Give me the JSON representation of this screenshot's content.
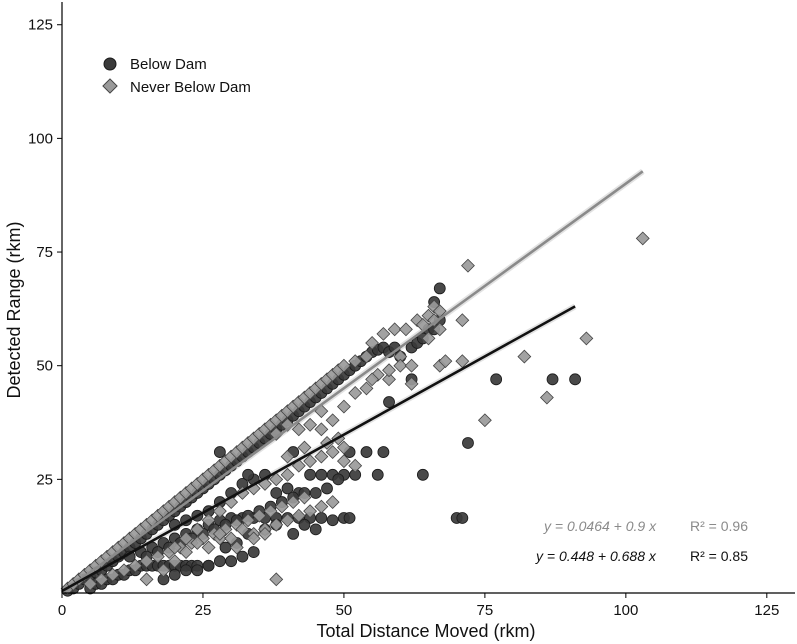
{
  "chart_data": {
    "type": "scatter",
    "xlabel": "Total Distance Moved (rkm)",
    "ylabel": "Detected Range (rkm)",
    "xlim": [
      0,
      130
    ],
    "ylim": [
      0,
      130
    ],
    "xticks": [
      0,
      25,
      50,
      75,
      100,
      125
    ],
    "yticks": [
      25,
      50,
      75,
      100,
      125
    ],
    "legend_position": "top-left",
    "grid": false,
    "series": [
      {
        "name": "Below Dam",
        "marker": "circle",
        "color": "#3a3a3a",
        "points": [
          [
            1,
            0.5
          ],
          [
            2,
            1
          ],
          [
            3,
            2
          ],
          [
            4,
            3
          ],
          [
            5,
            3.5
          ],
          [
            6,
            4.5
          ],
          [
            7,
            5
          ],
          [
            8,
            6
          ],
          [
            9,
            7
          ],
          [
            10,
            8
          ],
          [
            11,
            9
          ],
          [
            12,
            10
          ],
          [
            13,
            11
          ],
          [
            14,
            12
          ],
          [
            15,
            13
          ],
          [
            16,
            14
          ],
          [
            17,
            15
          ],
          [
            18,
            16
          ],
          [
            19,
            17
          ],
          [
            20,
            18
          ],
          [
            21,
            19
          ],
          [
            22,
            20
          ],
          [
            23,
            21
          ],
          [
            24,
            22
          ],
          [
            25,
            23
          ],
          [
            26,
            24
          ],
          [
            27,
            25
          ],
          [
            28,
            26
          ],
          [
            29,
            27
          ],
          [
            30,
            28
          ],
          [
            31,
            29
          ],
          [
            32,
            30
          ],
          [
            33,
            31
          ],
          [
            34,
            32
          ],
          [
            35,
            33
          ],
          [
            36,
            34
          ],
          [
            37,
            35
          ],
          [
            38,
            36
          ],
          [
            39,
            37
          ],
          [
            40,
            38
          ],
          [
            41,
            39
          ],
          [
            42,
            40
          ],
          [
            43,
            41
          ],
          [
            44,
            42
          ],
          [
            45,
            43
          ],
          [
            46,
            44
          ],
          [
            47,
            45
          ],
          [
            48,
            46
          ],
          [
            49,
            47
          ],
          [
            50,
            48
          ],
          [
            51,
            49
          ],
          [
            52,
            50
          ],
          [
            53,
            51
          ],
          [
            54,
            52
          ],
          [
            55,
            53
          ],
          [
            56,
            53.5
          ],
          [
            57,
            54
          ],
          [
            58,
            53
          ],
          [
            59,
            54
          ],
          [
            60,
            52
          ],
          [
            62,
            54
          ],
          [
            63,
            55
          ],
          [
            64,
            56
          ],
          [
            65,
            58
          ],
          [
            66,
            58
          ],
          [
            67,
            67
          ],
          [
            66,
            64
          ],
          [
            67,
            60
          ],
          [
            62,
            47
          ],
          [
            58,
            42
          ],
          [
            57,
            31
          ],
          [
            64,
            26
          ],
          [
            72,
            33
          ],
          [
            77,
            47
          ],
          [
            87,
            47
          ],
          [
            91,
            47
          ],
          [
            70,
            16.5
          ],
          [
            71,
            16.5
          ],
          [
            5,
            1
          ],
          [
            6,
            2
          ],
          [
            7,
            2
          ],
          [
            8,
            3
          ],
          [
            9,
            3
          ],
          [
            10,
            4
          ],
          [
            11,
            4
          ],
          [
            12,
            5
          ],
          [
            13,
            5
          ],
          [
            14,
            6
          ],
          [
            15,
            6
          ],
          [
            16,
            6
          ],
          [
            17,
            6
          ],
          [
            18,
            6
          ],
          [
            19,
            6
          ],
          [
            20,
            6
          ],
          [
            21,
            6
          ],
          [
            22,
            6
          ],
          [
            23,
            6
          ],
          [
            24,
            6
          ],
          [
            26,
            6
          ],
          [
            28,
            7
          ],
          [
            30,
            7
          ],
          [
            32,
            8
          ],
          [
            34,
            9
          ],
          [
            12,
            8
          ],
          [
            14,
            9
          ],
          [
            16,
            10
          ],
          [
            18,
            11
          ],
          [
            20,
            12
          ],
          [
            22,
            13
          ],
          [
            24,
            14
          ],
          [
            26,
            15
          ],
          [
            28,
            16
          ],
          [
            30,
            16.5
          ],
          [
            32,
            16.5
          ],
          [
            34,
            16.5
          ],
          [
            36,
            16.5
          ],
          [
            38,
            16.5
          ],
          [
            40,
            16.5
          ],
          [
            42,
            16.5
          ],
          [
            44,
            16.5
          ],
          [
            46,
            16.5
          ],
          [
            50,
            16.5
          ],
          [
            51,
            16.5
          ],
          [
            20,
            15
          ],
          [
            22,
            16
          ],
          [
            24,
            17
          ],
          [
            26,
            18
          ],
          [
            28,
            20
          ],
          [
            30,
            22
          ],
          [
            32,
            24
          ],
          [
            34,
            25
          ],
          [
            36,
            26
          ],
          [
            38,
            22
          ],
          [
            40,
            23
          ],
          [
            42,
            22
          ],
          [
            44,
            26
          ],
          [
            46,
            26
          ],
          [
            48,
            26
          ],
          [
            50,
            26
          ],
          [
            52,
            26
          ],
          [
            54,
            31
          ],
          [
            56,
            26
          ],
          [
            15,
            8
          ],
          [
            17,
            9
          ],
          [
            19,
            10
          ],
          [
            21,
            11
          ],
          [
            23,
            12
          ],
          [
            25,
            13
          ],
          [
            27,
            14
          ],
          [
            29,
            15
          ],
          [
            31,
            16
          ],
          [
            33,
            17
          ],
          [
            35,
            18
          ],
          [
            37,
            19
          ],
          [
            39,
            20
          ],
          [
            41,
            21
          ],
          [
            43,
            22
          ],
          [
            45,
            22
          ],
          [
            47,
            23
          ],
          [
            49,
            25
          ],
          [
            18,
            3
          ],
          [
            20,
            4
          ],
          [
            22,
            5
          ],
          [
            24,
            5
          ],
          [
            26,
            6
          ],
          [
            29,
            10
          ],
          [
            31,
            11
          ],
          [
            33,
            13
          ],
          [
            36,
            14
          ],
          [
            38,
            15
          ],
          [
            41,
            13
          ],
          [
            43,
            15
          ],
          [
            45,
            14
          ],
          [
            48,
            16
          ],
          [
            28,
            31
          ],
          [
            33,
            26
          ],
          [
            41,
            31
          ],
          [
            51,
            31
          ]
        ]
      },
      {
        "name": "Never Below Dam",
        "marker": "diamond",
        "color": "#9a9a9a",
        "points": [
          [
            1,
            1
          ],
          [
            2,
            2
          ],
          [
            3,
            3
          ],
          [
            4,
            4
          ],
          [
            5,
            5
          ],
          [
            6,
            6
          ],
          [
            7,
            7
          ],
          [
            8,
            8
          ],
          [
            9,
            9
          ],
          [
            10,
            10
          ],
          [
            11,
            11
          ],
          [
            12,
            12
          ],
          [
            13,
            13
          ],
          [
            14,
            14
          ],
          [
            15,
            15
          ],
          [
            16,
            16
          ],
          [
            17,
            17
          ],
          [
            18,
            18
          ],
          [
            19,
            19
          ],
          [
            20,
            20
          ],
          [
            21,
            21
          ],
          [
            22,
            22
          ],
          [
            23,
            23
          ],
          [
            24,
            24
          ],
          [
            25,
            25
          ],
          [
            26,
            26
          ],
          [
            27,
            27
          ],
          [
            28,
            28
          ],
          [
            29,
            29
          ],
          [
            30,
            30
          ],
          [
            31,
            31
          ],
          [
            32,
            32
          ],
          [
            33,
            33
          ],
          [
            34,
            34
          ],
          [
            35,
            35
          ],
          [
            36,
            36
          ],
          [
            37,
            37
          ],
          [
            38,
            38
          ],
          [
            39,
            39
          ],
          [
            40,
            40
          ],
          [
            41,
            41
          ],
          [
            42,
            42
          ],
          [
            43,
            43
          ],
          [
            44,
            44
          ],
          [
            45,
            45
          ],
          [
            46,
            46
          ],
          [
            47,
            47
          ],
          [
            48,
            48
          ],
          [
            49,
            49
          ],
          [
            50,
            50
          ],
          [
            52,
            51
          ],
          [
            54,
            52
          ],
          [
            55,
            55
          ],
          [
            57,
            57
          ],
          [
            59,
            58
          ],
          [
            61,
            58
          ],
          [
            63,
            60
          ],
          [
            65,
            61
          ],
          [
            66,
            63
          ],
          [
            67,
            62
          ],
          [
            72,
            72
          ],
          [
            71,
            60
          ],
          [
            66,
            60
          ],
          [
            67,
            58
          ],
          [
            71,
            51
          ],
          [
            67,
            50
          ],
          [
            60,
            52
          ],
          [
            62,
            46
          ],
          [
            56,
            48
          ],
          [
            58,
            47
          ],
          [
            54,
            45
          ],
          [
            52,
            44
          ],
          [
            50,
            41
          ],
          [
            48,
            38
          ],
          [
            46,
            36
          ],
          [
            44,
            37
          ],
          [
            42,
            36
          ],
          [
            40,
            37
          ],
          [
            38,
            35
          ],
          [
            75,
            38
          ],
          [
            82,
            52
          ],
          [
            86,
            43
          ],
          [
            93,
            56
          ],
          [
            103,
            78
          ],
          [
            38,
            3
          ],
          [
            5,
            2
          ],
          [
            7,
            3
          ],
          [
            9,
            4
          ],
          [
            11,
            5
          ],
          [
            13,
            6
          ],
          [
            15,
            7
          ],
          [
            17,
            8
          ],
          [
            19,
            9
          ],
          [
            21,
            10
          ],
          [
            23,
            11
          ],
          [
            25,
            12
          ],
          [
            27,
            13
          ],
          [
            29,
            14
          ],
          [
            31,
            15
          ],
          [
            33,
            16
          ],
          [
            35,
            17
          ],
          [
            37,
            18
          ],
          [
            39,
            19
          ],
          [
            41,
            20
          ],
          [
            43,
            21
          ],
          [
            15,
            3
          ],
          [
            18,
            5
          ],
          [
            20,
            7
          ],
          [
            22,
            9
          ],
          [
            24,
            11
          ],
          [
            26,
            10
          ],
          [
            28,
            12
          ],
          [
            30,
            12
          ],
          [
            32,
            14
          ],
          [
            34,
            13
          ],
          [
            36,
            14
          ],
          [
            38,
            15
          ],
          [
            40,
            16
          ],
          [
            42,
            17
          ],
          [
            44,
            18
          ],
          [
            46,
            19
          ],
          [
            48,
            20
          ],
          [
            20,
            10
          ],
          [
            22,
            12
          ],
          [
            24,
            14
          ],
          [
            26,
            16
          ],
          [
            28,
            18
          ],
          [
            30,
            20
          ],
          [
            32,
            22
          ],
          [
            34,
            23
          ],
          [
            36,
            24
          ],
          [
            38,
            25
          ],
          [
            40,
            26
          ],
          [
            42,
            28
          ],
          [
            44,
            29
          ],
          [
            46,
            30
          ],
          [
            48,
            31
          ],
          [
            50,
            32
          ],
          [
            28,
            13
          ],
          [
            31,
            10
          ],
          [
            34,
            12
          ],
          [
            36,
            13
          ],
          [
            40,
            30
          ],
          [
            43,
            32
          ],
          [
            47,
            33
          ],
          [
            49,
            34
          ],
          [
            46,
            40
          ],
          [
            50,
            29
          ],
          [
            52,
            28
          ],
          [
            55,
            47
          ],
          [
            58,
            49
          ],
          [
            60,
            50
          ],
          [
            62,
            50
          ],
          [
            64,
            59
          ],
          [
            65,
            56
          ],
          [
            68,
            51
          ]
        ]
      }
    ],
    "fit_lines": [
      {
        "name": "Never Below Dam",
        "color": "#8a8a8a",
        "intercept": 0.0464,
        "slope": 0.9,
        "x_range": [
          0,
          103
        ],
        "equation": "y = 0.0464 + 0.9 x",
        "r2_label": "R² = 0.96"
      },
      {
        "name": "Below Dam",
        "color": "#111111",
        "intercept": 0.448,
        "slope": 0.688,
        "x_range": [
          0,
          91
        ],
        "equation": "y = 0.448 + 0.688 x",
        "r2_label": "R² = 0.85"
      }
    ]
  }
}
